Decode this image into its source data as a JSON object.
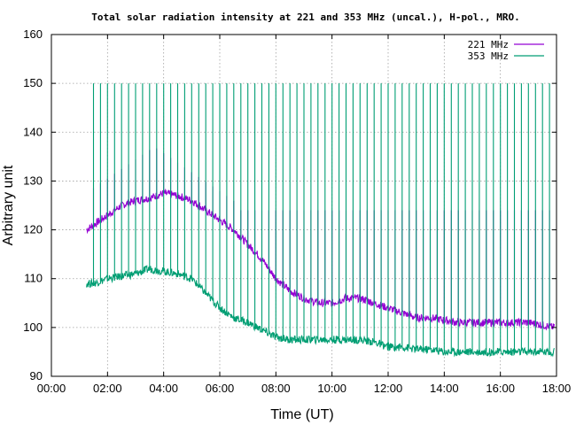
{
  "chart_data": {
    "type": "line",
    "title": "Total solar radiation intensity at 221 and 353 MHz (uncal.), H-pol., MRO.",
    "xlabel": "Time (UT)",
    "ylabel": "Arbitrary unit",
    "ylim": [
      90,
      160
    ],
    "xlim": [
      "00:00",
      "18:00"
    ],
    "x_ticks": [
      "00:00",
      "02:00",
      "04:00",
      "06:00",
      "08:00",
      "10:00",
      "12:00",
      "14:00",
      "16:00",
      "18:00"
    ],
    "y_ticks": [
      "90",
      "100",
      "110",
      "120",
      "130",
      "140",
      "150",
      "160"
    ],
    "grid": true,
    "legend_position": "top-right",
    "series": [
      {
        "name": "221 MHz",
        "color": "#9400d3",
        "x": [
          "01:15",
          "01:30",
          "02:00",
          "02:30",
          "03:00",
          "03:30",
          "04:00",
          "04:30",
          "05:00",
          "05:30",
          "06:00",
          "06:30",
          "07:00",
          "07:30",
          "08:00",
          "08:30",
          "09:00",
          "09:30",
          "10:00",
          "10:30",
          "11:00",
          "11:30",
          "12:00",
          "12:30",
          "13:00",
          "13:30",
          "14:00",
          "14:30",
          "15:00",
          "15:30",
          "16:00",
          "16:30",
          "17:00",
          "17:30",
          "17:55"
        ],
        "values": [
          120,
          121,
          123,
          125,
          126,
          126.5,
          127.5,
          127,
          126,
          124,
          122,
          120,
          117,
          114,
          110,
          107.5,
          106,
          105,
          105,
          106,
          106,
          105,
          104,
          103,
          102,
          102,
          101.5,
          101,
          101,
          101,
          101,
          101,
          101,
          100.5,
          100
        ]
      },
      {
        "name": "353 MHz",
        "color": "#009e73",
        "x": [
          "01:15",
          "01:30",
          "02:00",
          "02:30",
          "03:00",
          "03:30",
          "04:00",
          "04:30",
          "05:00",
          "05:30",
          "06:00",
          "06:30",
          "07:00",
          "07:30",
          "08:00",
          "08:30",
          "09:00",
          "09:30",
          "10:00",
          "10:30",
          "11:00",
          "11:30",
          "12:00",
          "12:30",
          "13:00",
          "13:30",
          "14:00",
          "14:30",
          "15:00",
          "15:30",
          "16:00",
          "16:30",
          "17:00",
          "17:30",
          "17:55"
        ],
        "values": [
          109,
          109,
          110,
          110.5,
          111,
          112,
          111.5,
          111,
          110,
          107,
          104,
          102,
          101,
          99.5,
          98,
          97.5,
          97.5,
          97.5,
          97.5,
          97.5,
          97.5,
          97,
          96,
          96,
          95.5,
          95.5,
          95,
          95,
          95,
          95,
          95,
          95,
          95,
          95,
          95
        ]
      }
    ]
  }
}
